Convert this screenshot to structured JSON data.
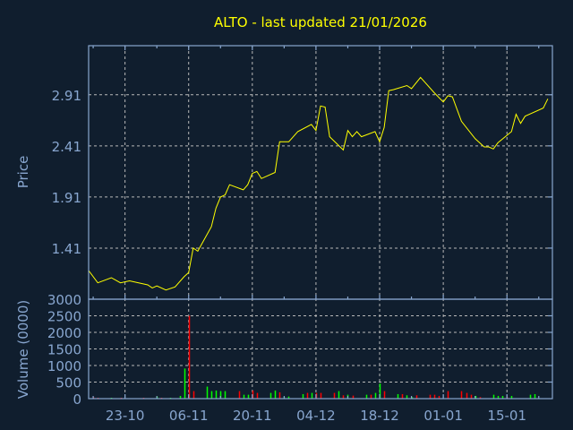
{
  "chart_data": [
    {
      "type": "line",
      "title": "ALTO - last updated 21/01/2026",
      "ylabel": "Price",
      "xlabel": "",
      "ylim": [
        0.91,
        3.39
      ],
      "xlim": [
        "2025-10-15",
        "2026-01-25"
      ],
      "yticks": [
        "2.91",
        "2.41",
        "1.91",
        "1.41"
      ],
      "xticks": [
        {
          "date": "2025-10-23",
          "label": "23-10"
        },
        {
          "date": "2025-11-06",
          "label": "06-11"
        },
        {
          "date": "2025-11-20",
          "label": "20-11"
        },
        {
          "date": "2025-12-04",
          "label": "04-12"
        },
        {
          "date": "2025-12-18",
          "label": "18-12"
        },
        {
          "date": "2026-01-01",
          "label": "01-01"
        },
        {
          "date": "2026-01-15",
          "label": "15-01"
        }
      ],
      "grid": true,
      "line_color": "#ffff00",
      "series": [
        {
          "points": [
            [
              "2025-10-15",
              1.19
            ],
            [
              "2025-10-17",
              1.07
            ],
            [
              "2025-10-20",
              1.12
            ],
            [
              "2025-10-22",
              1.07
            ],
            [
              "2025-10-24",
              1.09
            ],
            [
              "2025-10-28",
              1.05
            ],
            [
              "2025-10-29",
              1.02
            ],
            [
              "2025-10-30",
              1.04
            ],
            [
              "2025-11-01",
              1.0
            ],
            [
              "2025-11-03",
              1.03
            ],
            [
              "2025-11-05",
              1.13
            ],
            [
              "2025-11-06",
              1.17
            ],
            [
              "2025-11-07",
              1.41
            ],
            [
              "2025-11-08",
              1.38
            ],
            [
              "2025-11-11",
              1.62
            ],
            [
              "2025-11-12",
              1.8
            ],
            [
              "2025-11-13",
              1.91
            ],
            [
              "2025-11-14",
              1.93
            ],
            [
              "2025-11-15",
              2.03
            ],
            [
              "2025-11-18",
              1.98
            ],
            [
              "2025-11-19",
              2.03
            ],
            [
              "2025-11-20",
              2.14
            ],
            [
              "2025-11-21",
              2.16
            ],
            [
              "2025-11-22",
              2.09
            ],
            [
              "2025-11-25",
              2.15
            ],
            [
              "2025-11-26",
              2.45
            ],
            [
              "2025-11-28",
              2.45
            ],
            [
              "2025-11-30",
              2.55
            ],
            [
              "2025-12-03",
              2.62
            ],
            [
              "2025-12-04",
              2.56
            ],
            [
              "2025-12-05",
              2.8
            ],
            [
              "2025-12-06",
              2.79
            ],
            [
              "2025-12-07",
              2.5
            ],
            [
              "2025-12-10",
              2.37
            ],
            [
              "2025-12-11",
              2.56
            ],
            [
              "2025-12-12",
              2.5
            ],
            [
              "2025-12-13",
              2.55
            ],
            [
              "2025-12-14",
              2.5
            ],
            [
              "2025-12-17",
              2.55
            ],
            [
              "2025-12-18",
              2.45
            ],
            [
              "2025-12-19",
              2.59
            ],
            [
              "2025-12-20",
              2.95
            ],
            [
              "2025-12-21",
              2.96
            ],
            [
              "2025-12-24",
              3.0
            ],
            [
              "2025-12-25",
              2.97
            ],
            [
              "2025-12-27",
              3.08
            ],
            [
              "2025-12-28",
              3.03
            ],
            [
              "2025-12-30",
              2.93
            ],
            [
              "2026-01-01",
              2.84
            ],
            [
              "2026-01-02",
              2.9
            ],
            [
              "2026-01-03",
              2.89
            ],
            [
              "2026-01-05",
              2.65
            ],
            [
              "2026-01-08",
              2.48
            ],
            [
              "2026-01-10",
              2.4
            ],
            [
              "2026-01-11",
              2.4
            ],
            [
              "2026-01-12",
              2.38
            ],
            [
              "2026-01-13",
              2.44
            ],
            [
              "2026-01-16",
              2.55
            ],
            [
              "2026-01-17",
              2.72
            ],
            [
              "2026-01-18",
              2.63
            ],
            [
              "2026-01-19",
              2.7
            ],
            [
              "2026-01-23",
              2.78
            ],
            [
              "2026-01-24",
              2.87
            ]
          ]
        }
      ]
    },
    {
      "type": "bar",
      "ylabel": "Volume (0000)",
      "ylim": [
        0,
        3000
      ],
      "yticks": [
        "3000",
        "2500",
        "2000",
        "1500",
        "1000",
        "500",
        "0"
      ],
      "grid": true,
      "up_color": "#00ff00",
      "down_color": "#ff0000",
      "bars": [
        [
          "2025-10-16",
          45,
          "down"
        ],
        [
          "2025-10-17",
          27,
          "down"
        ],
        [
          "2025-10-20",
          27,
          "up"
        ],
        [
          "2025-10-22",
          27,
          "down"
        ],
        [
          "2025-10-27",
          27,
          "down"
        ],
        [
          "2025-10-30",
          64,
          "up"
        ],
        [
          "2025-10-31",
          27,
          "down"
        ],
        [
          "2025-11-02",
          27,
          "up"
        ],
        [
          "2025-11-04",
          82,
          "up"
        ],
        [
          "2025-11-05",
          910,
          "up"
        ],
        [
          "2025-11-06",
          2500,
          "down"
        ],
        [
          "2025-11-07",
          227,
          "down"
        ],
        [
          "2025-11-10",
          364,
          "up"
        ],
        [
          "2025-11-11",
          227,
          "up"
        ],
        [
          "2025-11-12",
          245,
          "up"
        ],
        [
          "2025-11-13",
          227,
          "up"
        ],
        [
          "2025-11-14",
          227,
          "up"
        ],
        [
          "2025-11-17",
          227,
          "down"
        ],
        [
          "2025-11-18",
          118,
          "up"
        ],
        [
          "2025-11-19",
          118,
          "up"
        ],
        [
          "2025-11-20",
          245,
          "down"
        ],
        [
          "2025-11-21",
          173,
          "down"
        ],
        [
          "2025-11-24",
          173,
          "up"
        ],
        [
          "2025-11-25",
          245,
          "up"
        ],
        [
          "2025-11-26",
          191,
          "down"
        ],
        [
          "2025-11-27",
          45,
          "up"
        ],
        [
          "2025-11-28",
          64,
          "up"
        ],
        [
          "2025-12-01",
          136,
          "up"
        ],
        [
          "2025-12-02",
          173,
          "down"
        ],
        [
          "2025-12-03",
          173,
          "up"
        ],
        [
          "2025-12-04",
          173,
          "down"
        ],
        [
          "2025-12-05",
          173,
          "down"
        ],
        [
          "2025-12-08",
          173,
          "down"
        ],
        [
          "2025-12-09",
          227,
          "up"
        ],
        [
          "2025-12-10",
          100,
          "down"
        ],
        [
          "2025-12-11",
          118,
          "up"
        ],
        [
          "2025-12-12",
          91,
          "down"
        ],
        [
          "2025-12-15",
          118,
          "up"
        ],
        [
          "2025-12-16",
          118,
          "down"
        ],
        [
          "2025-12-17",
          173,
          "up"
        ],
        [
          "2025-12-18",
          455,
          "up"
        ],
        [
          "2025-12-19",
          227,
          "down"
        ],
        [
          "2025-12-22",
          136,
          "up"
        ],
        [
          "2025-12-23",
          136,
          "down"
        ],
        [
          "2025-12-24",
          100,
          "up"
        ],
        [
          "2025-12-25",
          45,
          "up"
        ],
        [
          "2025-12-26",
          100,
          "down"
        ],
        [
          "2025-12-29",
          118,
          "down"
        ],
        [
          "2025-12-30",
          118,
          "down"
        ],
        [
          "2025-12-31",
          82,
          "down"
        ],
        [
          "2026-01-02",
          227,
          "down"
        ],
        [
          "2026-01-05",
          227,
          "down"
        ],
        [
          "2026-01-06",
          173,
          "down"
        ],
        [
          "2026-01-07",
          118,
          "down"
        ],
        [
          "2026-01-08",
          82,
          "up"
        ],
        [
          "2026-01-09",
          45,
          "down"
        ],
        [
          "2026-01-12",
          118,
          "up"
        ],
        [
          "2026-01-13",
          82,
          "up"
        ],
        [
          "2026-01-14",
          82,
          "up"
        ],
        [
          "2026-01-15",
          45,
          "down"
        ],
        [
          "2026-01-16",
          82,
          "up"
        ],
        [
          "2026-01-20",
          118,
          "up"
        ],
        [
          "2026-01-21",
          136,
          "up"
        ]
      ]
    }
  ]
}
